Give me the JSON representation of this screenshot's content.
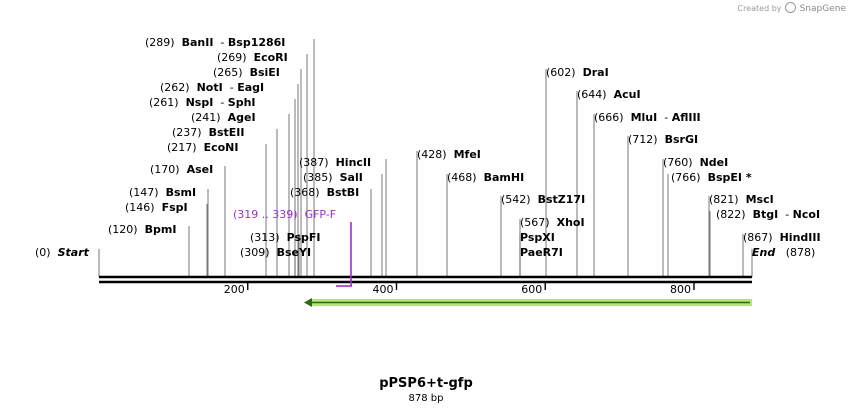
{
  "credit": {
    "prefix": "Created by",
    "brand": "SnapGene"
  },
  "sequence": {
    "name": "pPSP6+t-gfp",
    "length_label": "878 bp",
    "length": 878
  },
  "ticks": [
    "200",
    "400",
    "600",
    "800"
  ],
  "sites": [
    {
      "pos": "(289)",
      "name": "BanII",
      "name2": "Bsp1286I"
    },
    {
      "pos": "(269)",
      "name": "EcoRI"
    },
    {
      "pos": "(265)",
      "name": "BsiEI"
    },
    {
      "pos": "(262)",
      "name": "NotI",
      "name2": "EagI"
    },
    {
      "pos": "(261)",
      "name": "NspI",
      "name2": "SphI"
    },
    {
      "pos": "(241)",
      "name": "AgeI"
    },
    {
      "pos": "(237)",
      "name": "BstEII"
    },
    {
      "pos": "(217)",
      "name": "EcoNI"
    },
    {
      "pos": "(170)",
      "name": "AseI"
    },
    {
      "pos": "(147)",
      "name": "BsmI"
    },
    {
      "pos": "(146)",
      "name": "FspI"
    },
    {
      "pos": "(120)",
      "name": "BpmI"
    },
    {
      "pos": "(0)",
      "name": "Start",
      "italic": true
    },
    {
      "pos": "(387)",
      "name": "HincII"
    },
    {
      "pos": "(385)",
      "name": "SalI"
    },
    {
      "pos": "(368)",
      "name": "BstBI"
    },
    {
      "pos": "(313)",
      "name": "PspFI"
    },
    {
      "pos": "(309)",
      "name": "BseYI"
    },
    {
      "pos": "(428)",
      "name": "MfeI"
    },
    {
      "pos": "(468)",
      "name": "BamHI"
    },
    {
      "pos": "(542)",
      "name": "BstZ17I"
    },
    {
      "pos": "(567)",
      "name": "XhoI"
    },
    {
      "name": "PspXI"
    },
    {
      "name": "PaeR7I"
    },
    {
      "pos": "(602)",
      "name": "DraI"
    },
    {
      "pos": "(644)",
      "name": "AcuI"
    },
    {
      "pos": "(666)",
      "name": "MluI",
      "name2": "AflIII"
    },
    {
      "pos": "(712)",
      "name": "BsrGI"
    },
    {
      "pos": "(760)",
      "name": "NdeI"
    },
    {
      "pos": "(766)",
      "name": "BspEI *"
    },
    {
      "pos": "(821)",
      "name": "MscI"
    },
    {
      "pos": "(822)",
      "name": "BtgI",
      "name2": "NcoI"
    },
    {
      "pos": "(867)",
      "name": "HindIII"
    },
    {
      "pos": "(878)",
      "name": "End",
      "italic": true
    }
  ],
  "primer": {
    "range": "(319 .. 339)",
    "name": "GFP-F",
    "color": "#9b30c8"
  },
  "feature": {
    "color": "#b5e37e",
    "stroke": "#2a6a10"
  },
  "colors": {
    "text": "#000000",
    "line": "#555555"
  }
}
